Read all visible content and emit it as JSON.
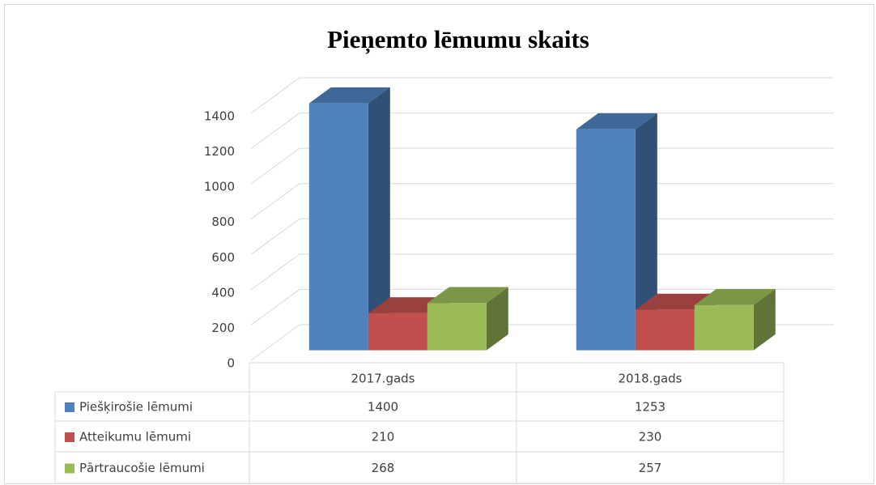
{
  "chart_data": {
    "type": "bar3d",
    "title": "Pieņemto lēmumu skaits",
    "categories": [
      "2017.gads",
      "2018.gads"
    ],
    "series": [
      {
        "name": "Piešķirošie lēmumi",
        "color": "#4f81bd",
        "values": [
          1400,
          1253
        ]
      },
      {
        "name": "Atteikumu lēmumi",
        "color": "#c0504d",
        "values": [
          210,
          230
        ]
      },
      {
        "name": "Pārtraucošie lēmumi",
        "color": "#9bbb59",
        "values": [
          268,
          257
        ]
      }
    ],
    "ylim": [
      0,
      1400
    ],
    "yticks": [
      0,
      200,
      400,
      600,
      800,
      1000,
      1200,
      1400
    ],
    "grid": true,
    "data_table": true
  }
}
